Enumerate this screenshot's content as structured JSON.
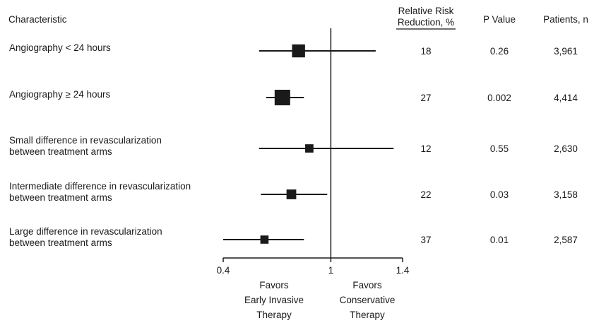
{
  "chart_data": {
    "type": "forest",
    "headers": {
      "characteristic": "Characteristic",
      "rrr_line1": "Relative Risk",
      "rrr_line2": "Reduction, %",
      "p_value": "P Value",
      "patients": "Patients, n"
    },
    "rows": [
      {
        "label": [
          "Angiography < 24 hours"
        ],
        "estimate": 0.82,
        "lower": 0.6,
        "upper": 1.25,
        "marker_weight": 3961,
        "rrr": "18",
        "p": "0.26",
        "n": "3,961"
      },
      {
        "label": [
          "Angiography ≥ 24 hours"
        ],
        "estimate": 0.73,
        "lower": 0.64,
        "upper": 0.85,
        "marker_weight": 4414,
        "rrr": "27",
        "p": "0.002",
        "n": "4,414"
      },
      {
        "label": [
          "Small difference in revascularization",
          "between treatment arms"
        ],
        "estimate": 0.88,
        "lower": 0.6,
        "upper": 1.35,
        "marker_weight": 2630,
        "rrr": "12",
        "p": "0.55",
        "n": "2,630"
      },
      {
        "label": [
          "Intermediate difference in revascularization",
          "between treatment arms"
        ],
        "estimate": 0.78,
        "lower": 0.61,
        "upper": 0.98,
        "marker_weight": 3158,
        "rrr": "22",
        "p": "0.03",
        "n": "3,158"
      },
      {
        "label": [
          "Large difference in revascularization",
          "between treatment arms"
        ],
        "estimate": 0.63,
        "lower": 0.4,
        "upper": 0.85,
        "marker_weight": 2587,
        "rrr": "37",
        "p": "0.01",
        "n": "2,587"
      }
    ],
    "x_axis": {
      "min": 0.4,
      "max": 1.4,
      "reference": 1,
      "ticks": [
        0.4,
        1,
        1.4
      ],
      "tick_labels": [
        "0.4",
        "1",
        "1.4"
      ]
    },
    "favors_left": [
      "Favors",
      "Early Invasive",
      "Therapy"
    ],
    "favors_right": [
      "Favors",
      "Conservative",
      "Therapy"
    ]
  }
}
